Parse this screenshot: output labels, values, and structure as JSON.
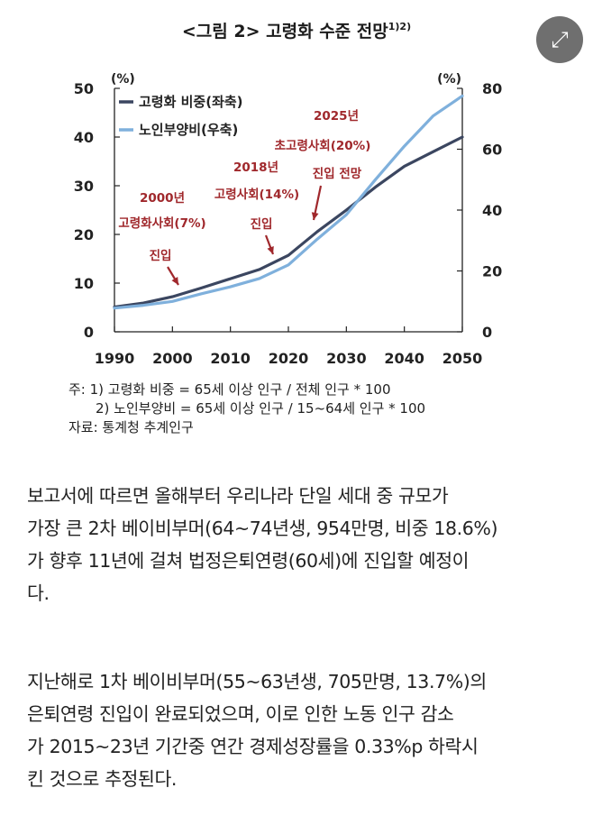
{
  "figure": {
    "title": "<그림 2> 고령화 수준 전망",
    "title_sup": "1)2)"
  },
  "expand_icon": "expand-arrows-icon",
  "chart_data": {
    "type": "line",
    "x": [
      1990,
      1995,
      2000,
      2005,
      2010,
      2015,
      2020,
      2025,
      2030,
      2035,
      2040,
      2045,
      2050
    ],
    "xlim": [
      1990,
      2050
    ],
    "x_ticks": [
      "1990",
      "2000",
      "2010",
      "2020",
      "2030",
      "2040",
      "2050"
    ],
    "left_axis": {
      "unit": "(%)",
      "ylim": [
        0,
        50
      ],
      "ticks": [
        "0",
        "10",
        "20",
        "30",
        "40",
        "50"
      ]
    },
    "right_axis": {
      "unit": "(%)",
      "ylim": [
        0,
        80
      ],
      "ticks": [
        "0",
        "20",
        "40",
        "60",
        "80"
      ]
    },
    "series": [
      {
        "name": "고령화 비중(좌축)",
        "axis": "left",
        "color": "#3b4660",
        "values": [
          5.1,
          5.9,
          7.2,
          9.0,
          10.9,
          12.8,
          15.7,
          20.6,
          25.0,
          29.7,
          34.0,
          37.0,
          40.0
        ]
      },
      {
        "name": "노인부양비(우축)",
        "axis": "right",
        "color": "#7fb0dc",
        "values": [
          7.8,
          8.7,
          10.0,
          12.5,
          14.8,
          17.5,
          22.0,
          30.5,
          38.5,
          50.0,
          61.0,
          71.0,
          77.5
        ]
      }
    ],
    "annotations": [
      {
        "lines": [
          "2000년",
          "고령화사회(7%)",
          "진입"
        ],
        "year": 2000,
        "value": 7.2
      },
      {
        "lines": [
          "2018년",
          "고령사회(14%)",
          "진입"
        ],
        "year": 2018,
        "value": 14.4
      },
      {
        "lines": [
          "2025년",
          "초고령사회(20%)",
          "진입 전망"
        ],
        "year": 2025,
        "value": 20.6
      }
    ],
    "annotation_color": "#a0282c",
    "grid": false,
    "legend_position": "top-left"
  },
  "notes": {
    "line1": "주:  1)  고령화 비중 = 65세 이상 인구 / 전체 인구 * 100",
    "line2": "2)  노인부양비 = 65세 이상 인구 / 15~64세 인구 * 100",
    "line3": "자료:  통계청  추계인구"
  },
  "article": {
    "paragraph1": [
      "보고서에 따르면 올해부터 우리나라 단일 세대 중 규모가",
      "가장 큰 2차 베이비부머(64~74년생, 954만명, 비중 18.6%)",
      "가 향후 11년에 걸쳐 법정은퇴연령(60세)에 진입할 예정이",
      "다."
    ],
    "paragraph2": [
      "지난해로 1차 베이비부머(55~63년생, 705만명, 13.7%)의",
      "은퇴연령 진입이 완료되었으며, 이로 인한 노동 인구 감소",
      "가 2015~23년 기간중 연간 경제성장률을 0.33%p 하락시",
      "킨 것으로 추정된다."
    ]
  }
}
